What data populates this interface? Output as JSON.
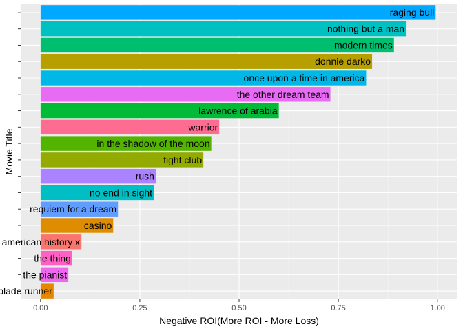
{
  "chart_data": {
    "type": "bar",
    "orientation": "horizontal",
    "title": "",
    "xlabel": "Negative ROI(More ROI - More Loss)",
    "ylabel": "Movie Title",
    "xlim": [
      -0.05,
      1.05
    ],
    "xticks": [
      0,
      0.25,
      0.5,
      0.75,
      1
    ],
    "xtick_labels": [
      "0.00",
      "0.25",
      "0.50",
      "0.75",
      "1.00"
    ],
    "grid": true,
    "legend": "none",
    "categories": [
      "raging bull",
      "nothing but a man",
      "modern times",
      "donnie darko",
      "once upon a time in america",
      "the other dream team",
      "lawrence of arabia",
      "warrior",
      "in the shadow of the moon",
      "fight club",
      "rush",
      "no end in sight",
      "requiem for a dream",
      "casino",
      "american history x",
      "the thing",
      "the pianist",
      "blade runner"
    ],
    "values": [
      0.995,
      0.92,
      0.89,
      0.835,
      0.82,
      0.73,
      0.6,
      0.45,
      0.43,
      0.41,
      0.29,
      0.285,
      0.195,
      0.183,
      0.103,
      0.08,
      0.07,
      0.033
    ],
    "colors": [
      "#00A9FF",
      "#00C1C1",
      "#00BE70",
      "#B79F00",
      "#00B8E7",
      "#E76BF3",
      "#00BA38",
      "#FF6C91",
      "#53B400",
      "#93AA00",
      "#AB82FF",
      "#00BFC4",
      "#619CFF",
      "#DE8C00",
      "#F8766D",
      "#FF61C3",
      "#ED68ED",
      "#E58700"
    ]
  }
}
